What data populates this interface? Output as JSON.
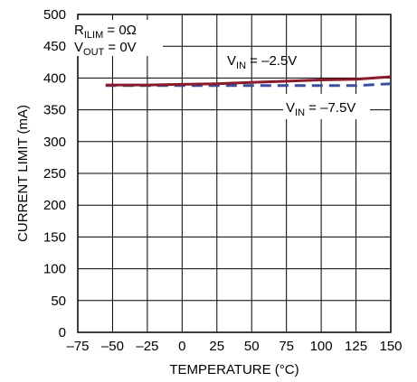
{
  "chart_data": {
    "type": "line",
    "xlabel": "TEMPERATURE (°C)",
    "ylabel": "CURRENT LIMIT (mA)",
    "xlim": [
      -75,
      150
    ],
    "ylim": [
      0,
      500
    ],
    "xticks": [
      -75,
      -50,
      -25,
      0,
      25,
      50,
      75,
      100,
      125,
      150
    ],
    "yticks": [
      0,
      50,
      100,
      150,
      200,
      250,
      300,
      350,
      400,
      450,
      500
    ],
    "grid": true,
    "colors": {
      "vin_2_5": "#8b1a2b",
      "vin_7_5": "#3b4f9c"
    },
    "series": [
      {
        "name": "VIN = –2.5V",
        "style": "solid",
        "x": [
          -55,
          -25,
          0,
          25,
          50,
          75,
          100,
          125,
          150
        ],
        "y": [
          389,
          389,
          390,
          391,
          393,
          395,
          397,
          398,
          402
        ]
      },
      {
        "name": "VIN = –7.5V",
        "style": "dashed",
        "x": [
          -55,
          -25,
          0,
          25,
          50,
          75,
          100,
          125,
          150
        ],
        "y": [
          388,
          388,
          388,
          388,
          388,
          388,
          388,
          388,
          391
        ]
      }
    ],
    "annotations": {
      "cond1": {
        "main": "R",
        "sub": "ILIM",
        "rest": " = 0Ω"
      },
      "cond2": {
        "main": "V",
        "sub": "OUT",
        "rest": " = 0V"
      },
      "label_2_5": {
        "main": "V",
        "sub": "IN",
        "rest": " = –2.5V"
      },
      "label_7_5": {
        "main": "V",
        "sub": "IN",
        "rest": " = –7.5V"
      }
    }
  }
}
